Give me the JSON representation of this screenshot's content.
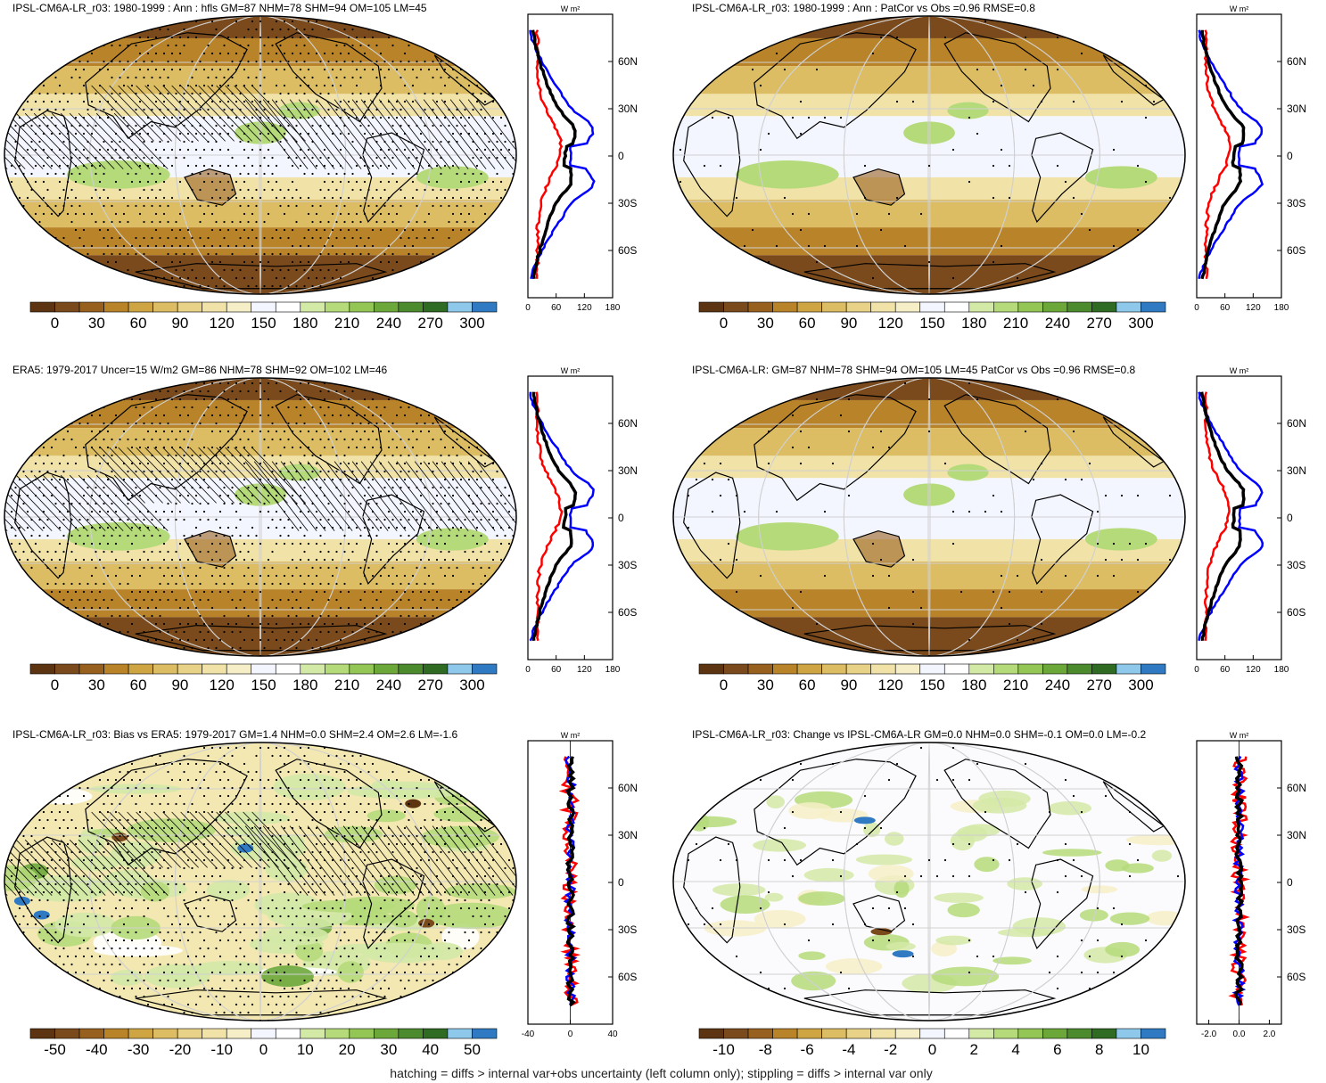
{
  "palette": {
    "abs": [
      "#5c3411",
      "#7a4a1c",
      "#98601f",
      "#b98429",
      "#cfa543",
      "#dcbd63",
      "#e8d287",
      "#f1e2a8",
      "#f6eec7",
      "#f4f6ff",
      "#ffffff",
      "#d3e9a6",
      "#b5da7a",
      "#94c656",
      "#6ca73a",
      "#4c8a2e",
      "#2f6b23",
      "#8ec9ec",
      "#2f7ac3"
    ],
    "diff": [
      "#5c3411",
      "#7a4a1c",
      "#98601f",
      "#b98429",
      "#cfa543",
      "#dcbd63",
      "#e8d287",
      "#f1e2a8",
      "#f6eec7",
      "#f4f6ff",
      "#ffffff",
      "#d3e9a6",
      "#b5da7a",
      "#94c656",
      "#6ca73a",
      "#4c8a2e",
      "#2f6b23",
      "#8ec9ec",
      "#2f7ac3"
    ],
    "line_red": "#ff0000",
    "line_blue": "#0000ff",
    "line_black": "#000000"
  },
  "units": "W m²",
  "lat_labels": [
    "60N",
    "30N",
    "0",
    "30S",
    "60S"
  ],
  "panels": [
    {
      "title": "IPSL-CM6A-LR_r03: 1980-1999 : Ann : hfls GM=87 NHM=78 SHM=94 OM=105 LM=45",
      "map_style": "abs",
      "hatch": true,
      "stipple": "dense",
      "colorbar_labels": [
        "0",
        "30",
        "60",
        "90",
        "120",
        "150",
        "180",
        "210",
        "240",
        "270",
        "300"
      ],
      "zonal_ticks": [
        "0",
        "60",
        "120",
        "180"
      ],
      "zonal_range": [
        0,
        180
      ]
    },
    {
      "title": "IPSL-CM6A-LR_r03: 1980-1999 : Ann : PatCor vs Obs =0.96 RMSE=0.8",
      "map_style": "abs",
      "hatch": false,
      "stipple": "sparse",
      "colorbar_labels": [
        "0",
        "30",
        "60",
        "90",
        "120",
        "150",
        "180",
        "210",
        "240",
        "270",
        "300"
      ],
      "zonal_ticks": [
        "0",
        "60",
        "120",
        "180"
      ],
      "zonal_range": [
        0,
        180
      ]
    },
    {
      "title": "ERA5: 1979-2017 Uncer=15 W/m2 GM=86 NHM=78 SHM=92 OM=102 LM=46",
      "map_style": "abs",
      "hatch": true,
      "stipple": "dense",
      "colorbar_labels": [
        "0",
        "30",
        "60",
        "90",
        "120",
        "150",
        "180",
        "210",
        "240",
        "270",
        "300"
      ],
      "zonal_ticks": [
        "0",
        "60",
        "120",
        "180"
      ],
      "zonal_range": [
        0,
        180
      ]
    },
    {
      "title": "IPSL-CM6A-LR: GM=87 NHM=78 SHM=94 OM=105 LM=45 PatCor vs Obs =0.96 RMSE=0.8",
      "map_style": "abs",
      "hatch": false,
      "stipple": "sparse",
      "colorbar_labels": [
        "0",
        "30",
        "60",
        "90",
        "120",
        "150",
        "180",
        "210",
        "240",
        "270",
        "300"
      ],
      "zonal_ticks": [
        "0",
        "60",
        "120",
        "180"
      ],
      "zonal_range": [
        0,
        180
      ]
    },
    {
      "title": "IPSL-CM6A-LR_r03: Bias vs ERA5: 1979-2017 GM=1.4 NHM=0.0 SHM=2.4 OM=2.6 LM=-1.6",
      "map_style": "bias",
      "hatch": true,
      "stipple": "dense",
      "colorbar_labels": [
        "-50",
        "-40",
        "-30",
        "-20",
        "-10",
        "0",
        "10",
        "20",
        "30",
        "40",
        "50"
      ],
      "zonal_ticks": [
        "-40",
        "0",
        "40"
      ],
      "zonal_range": [
        -40,
        40
      ]
    },
    {
      "title": "IPSL-CM6A-LR_r03: Change vs IPSL-CM6A-LR GM=0.0 NHM=0.0 SHM=-0.1 OM=0.0 LM=-0.2",
      "map_style": "change",
      "hatch": false,
      "stipple": "sparse",
      "colorbar_labels": [
        "-10",
        "-8",
        "-6",
        "-4",
        "-2",
        "0",
        "2",
        "4",
        "6",
        "8",
        "10"
      ],
      "zonal_ticks": [
        "-2.0",
        "0.0",
        "2.0"
      ],
      "zonal_range": [
        -2.8,
        2.8
      ]
    }
  ],
  "footnote": "hatching = diffs > internal var+obs uncertainty (left column only); stippling = diffs > internal var only"
}
